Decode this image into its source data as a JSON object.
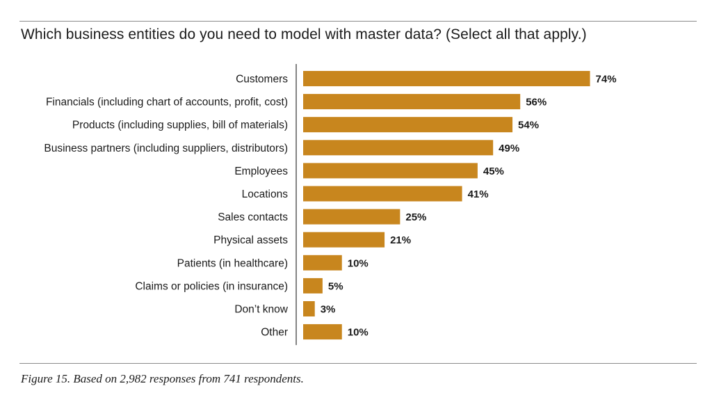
{
  "title": "Which business entities do you need to model with master data? (Select all that apply.)",
  "caption": "Figure 15. Based on 2,982 responses from 741 respondents.",
  "colors": {
    "bar": "#c8861e",
    "axis": "#333333",
    "rule": "#8a8a8a"
  },
  "chart_data": {
    "type": "bar",
    "orientation": "horizontal",
    "title": "Which business entities do you need to model with master data? (Select all that apply.)",
    "xlabel": "",
    "ylabel": "",
    "grid": false,
    "legend": "none",
    "xlim": [
      0,
      100
    ],
    "value_suffix": "%",
    "categories": [
      "Customers",
      "Financials (including chart of accounts, profit, cost)",
      "Products (including supplies, bill of materials)",
      "Business partners (including suppliers, distributors)",
      "Employees",
      "Locations",
      "Sales contacts",
      "Physical assets",
      "Patients (in healthcare)",
      "Claims or policies (in insurance)",
      "Don’t know",
      "Other"
    ],
    "values": [
      74,
      56,
      54,
      49,
      45,
      41,
      25,
      21,
      10,
      5,
      3,
      10
    ],
    "value_labels": [
      "74%",
      "56%",
      "54%",
      "49%",
      "45%",
      "41%",
      "25%",
      "21%",
      "10%",
      "5%",
      "3%",
      "10%"
    ]
  }
}
